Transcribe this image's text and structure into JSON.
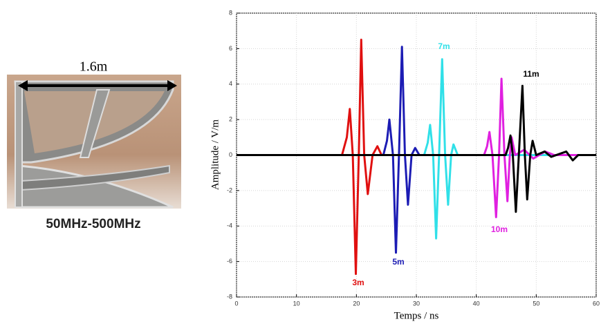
{
  "photo": {
    "dimension_label": "1.6m",
    "caption": "50MHz-500MHz"
  },
  "chart_data": {
    "type": "line",
    "xlabel": "Temps / ns",
    "ylabel": "Amplitude / V/m",
    "xlim": [
      0,
      60
    ],
    "xticks": [
      0,
      10,
      20,
      30,
      40,
      50,
      60
    ],
    "ylim": [
      -8,
      8
    ],
    "yticks": [
      -8,
      -6,
      -4,
      -2,
      0,
      2,
      4,
      6,
      8
    ],
    "grid": true,
    "series": [
      {
        "color": "#e01010",
        "x": [
          0,
          17.6,
          18.4,
          18.9,
          19.4,
          19.9,
          20.4,
          20.8,
          21.3,
          21.9,
          22.7,
          23.5,
          24.2,
          60
        ],
        "values": [
          0,
          0,
          1.0,
          2.6,
          0,
          -6.7,
          0,
          6.5,
          0,
          -2.2,
          0,
          0.5,
          0,
          0
        ]
      },
      {
        "color": "#1c1cb4",
        "x": [
          0,
          24.5,
          25.1,
          25.5,
          26.1,
          26.6,
          27.1,
          27.6,
          28.1,
          28.6,
          29.2,
          29.8,
          30.5,
          60
        ],
        "values": [
          0,
          0,
          0.8,
          2.0,
          0,
          -5.5,
          0,
          6.1,
          0,
          -2.8,
          0,
          0.4,
          0,
          0
        ]
      },
      {
        "color": "#30e0e8",
        "x": [
          0,
          31.3,
          31.9,
          32.3,
          32.8,
          33.3,
          33.8,
          34.3,
          34.8,
          35.3,
          35.8,
          36.2,
          36.9,
          60
        ],
        "values": [
          0,
          0,
          0.7,
          1.7,
          0,
          -4.7,
          0,
          5.4,
          0,
          -2.8,
          0,
          0.6,
          0,
          0
        ]
      },
      {
        "color": "#e020e0",
        "x": [
          0,
          41.3,
          41.8,
          42.2,
          42.7,
          43.3,
          43.8,
          44.2,
          44.7,
          45.2,
          45.6,
          45.9,
          46.5,
          48.0,
          49.5,
          51.5,
          53.0,
          60
        ],
        "values": [
          0,
          0,
          0.5,
          1.3,
          0,
          -3.5,
          0,
          4.3,
          0,
          -2.6,
          0,
          1.0,
          0,
          0.3,
          -0.2,
          0.2,
          0,
          0
        ]
      },
      {
        "color": "#000000",
        "x": [
          0,
          44.9,
          45.3,
          45.7,
          46.1,
          46.6,
          47.1,
          47.7,
          48.1,
          48.5,
          49.0,
          49.4,
          50.0,
          51.4,
          52.5,
          55.0,
          56.1,
          57.0,
          60
        ],
        "values": [
          0,
          0,
          0.4,
          1.1,
          0,
          -3.2,
          0,
          3.9,
          0,
          -2.5,
          0,
          0.8,
          0,
          0.2,
          -0.1,
          0.2,
          -0.3,
          0,
          0
        ]
      }
    ],
    "annotations": [
      "3m",
      "5m",
      "7m",
      "10m",
      "11m"
    ]
  }
}
